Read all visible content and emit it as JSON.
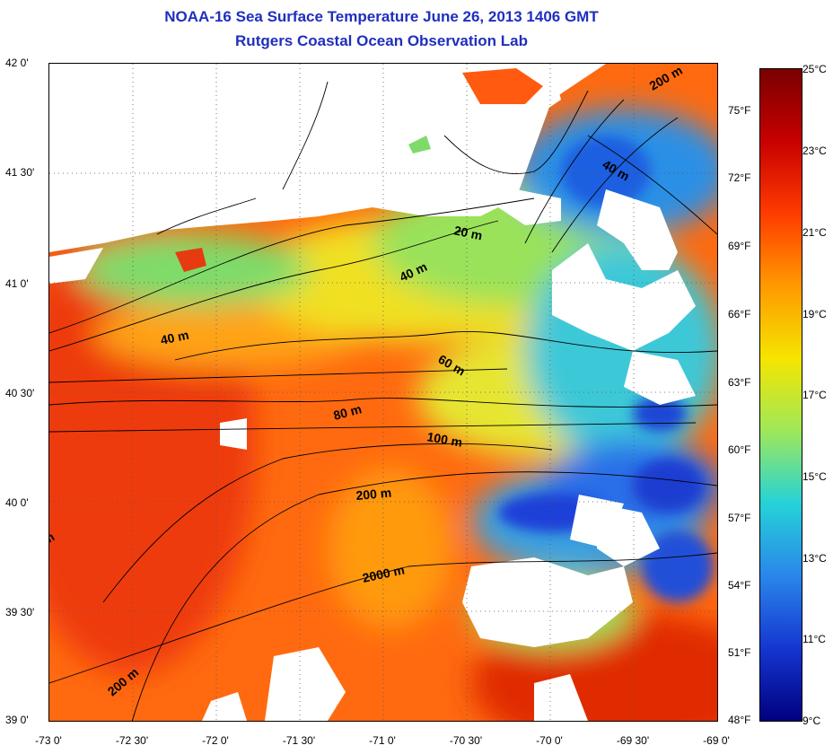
{
  "title": {
    "line1": "NOAA-16 Sea Surface Temperature June 26, 2013 1406 GMT",
    "line2": "Rutgers Coastal Ocean Observation Lab"
  },
  "map": {
    "lat_labels": [
      "42 0'",
      "41 30'",
      "41 0'",
      "40 30'",
      "40 0'",
      "39 30'",
      "39 0'"
    ],
    "lon_labels": [
      "-73 0'",
      "-72 30'",
      "-72 0'",
      "-71 30'",
      "-71 0'",
      "-70 30'",
      "-70 0'",
      "-69 30'",
      "-69 0'"
    ],
    "isobath_labels": [
      "20 m",
      "40 m",
      "40 m",
      "40 m",
      "60 m",
      "80 m",
      "100 m",
      "200 m",
      "200 m",
      "2000 m",
      "200 m",
      "m"
    ]
  },
  "colorbar": {
    "celsius_labels": [
      "25°C",
      "23°C",
      "21°C",
      "19°C",
      "17°C",
      "15°C",
      "13°C",
      "11°C",
      "9°C"
    ],
    "fahrenheit_labels": [
      "75°F",
      "72°F",
      "69°F",
      "66°F",
      "63°F",
      "60°F",
      "57°F",
      "54°F",
      "51°F",
      "48°F"
    ],
    "colors": [
      "#7a0000",
      "#c80000",
      "#ff3c00",
      "#ff9a00",
      "#f5e500",
      "#9ee85a",
      "#25d2d8",
      "#2a86ea",
      "#1536d0",
      "#000080"
    ]
  }
}
